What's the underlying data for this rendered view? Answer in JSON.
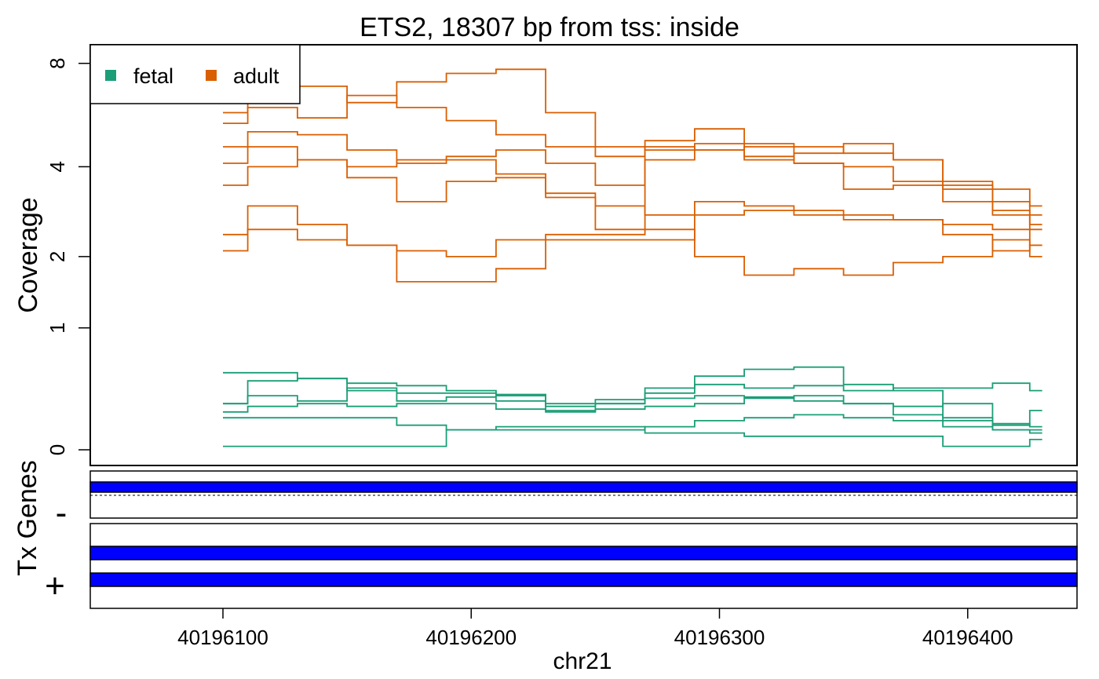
{
  "chart_data": {
    "type": "line",
    "title": "ETS2, 18307 bp from tss: inside",
    "xlabel": "chr21",
    "ylabel": "Coverage",
    "x_range": [
      40196046,
      40196446
    ],
    "x_ticks": [
      "40196100",
      "40196200",
      "40196300",
      "40196400"
    ],
    "y_scale": "log2(y+1)",
    "y_ticks": [
      "0",
      "1",
      "2",
      "4",
      "8"
    ],
    "y_range": [
      0,
      8.3
    ],
    "legend": {
      "placement": "top-left",
      "entries": [
        "fetal",
        "adult"
      ]
    },
    "colors": {
      "fetal": "#1b9e77",
      "adult": "#d95f02",
      "gene": "#0000ff"
    },
    "x": [
      40196100,
      40196120,
      40196140,
      40196160,
      40196180,
      40196200,
      40196220,
      40196240,
      40196260,
      40196280,
      40196300,
      40196320,
      40196340,
      40196360,
      40196380,
      40196400,
      40196420,
      40196430
    ],
    "series": [
      {
        "group": "adult",
        "values": [
          5.8,
          6.4,
          6.9,
          6.2,
          7.1,
          7.5,
          7.7,
          5.8,
          4.6,
          4.5,
          4.7,
          4.7,
          4.6,
          4.4,
          4.2,
          3.6,
          3.4,
          3.0
        ]
      },
      {
        "group": "adult",
        "values": [
          5.4,
          6.0,
          5.6,
          6.5,
          6.0,
          5.5,
          5.0,
          4.6,
          4.3,
          4.8,
          5.2,
          4.3,
          4.1,
          4.0,
          3.6,
          3.1,
          2.9,
          2.5
        ]
      },
      {
        "group": "adult",
        "values": [
          4.6,
          5.1,
          5.0,
          4.5,
          4.1,
          4.3,
          4.5,
          4.1,
          3.5,
          4.2,
          4.5,
          4.2,
          4.4,
          4.7,
          4.2,
          3.4,
          2.8,
          2.6
        ]
      },
      {
        "group": "adult",
        "values": [
          4.1,
          4.6,
          4.2,
          4.0,
          4.2,
          4.2,
          3.8,
          3.2,
          2.5,
          4.6,
          4.5,
          4.6,
          4.1,
          3.4,
          3.5,
          3.5,
          3.1,
          2.8
        ]
      },
      {
        "group": "adult",
        "values": [
          3.5,
          4.0,
          4.2,
          3.7,
          3.1,
          3.6,
          3.7,
          3.3,
          3.0,
          2.8,
          3.1,
          3.0,
          2.9,
          2.8,
          2.7,
          2.6,
          2.5,
          2.2
        ]
      },
      {
        "group": "adult",
        "values": [
          2.4,
          3.0,
          2.6,
          2.2,
          2.1,
          2.0,
          2.3,
          2.4,
          2.4,
          2.5,
          2.0,
          1.7,
          1.8,
          1.7,
          1.9,
          2.0,
          2.3,
          2.0
        ]
      },
      {
        "group": "adult",
        "values": [
          2.1,
          2.5,
          2.3,
          2.2,
          1.6,
          1.6,
          1.8,
          2.3,
          2.3,
          2.3,
          2.8,
          2.9,
          2.8,
          2.7,
          2.7,
          2.4,
          2.1,
          2.2
        ]
      },
      {
        "group": "fetal",
        "values": [
          0.55,
          0.55,
          0.5,
          0.4,
          0.38,
          0.38,
          0.37,
          0.28,
          0.33,
          0.38,
          0.52,
          0.58,
          0.6,
          0.45,
          0.4,
          0.18,
          0.12,
          0.12
        ]
      },
      {
        "group": "fetal",
        "values": [
          0.3,
          0.48,
          0.5,
          0.46,
          0.44,
          0.4,
          0.36,
          0.3,
          0.3,
          0.42,
          0.45,
          0.42,
          0.44,
          0.4,
          0.42,
          0.42,
          0.46,
          0.4
        ]
      },
      {
        "group": "fetal",
        "values": [
          0.3,
          0.36,
          0.32,
          0.42,
          0.32,
          0.35,
          0.32,
          0.25,
          0.3,
          0.34,
          0.36,
          0.35,
          0.32,
          0.3,
          0.22,
          0.2,
          0.15,
          0.25
        ]
      },
      {
        "group": "fetal",
        "values": [
          0.24,
          0.28,
          0.3,
          0.28,
          0.3,
          0.3,
          0.26,
          0.24,
          0.26,
          0.28,
          0.3,
          0.34,
          0.36,
          0.3,
          0.28,
          0.3,
          0.16,
          0.14
        ]
      },
      {
        "group": "fetal",
        "values": [
          0.2,
          0.2,
          0.2,
          0.2,
          0.15,
          0.12,
          0.12,
          0.12,
          0.12,
          0.14,
          0.18,
          0.2,
          0.22,
          0.2,
          0.18,
          0.14,
          0.12,
          0.1
        ]
      },
      {
        "group": "fetal",
        "values": [
          0.02,
          0.02,
          0.02,
          0.02,
          0.02,
          0.12,
          0.14,
          0.14,
          0.14,
          0.1,
          0.1,
          0.08,
          0.08,
          0.08,
          0.08,
          0.02,
          0.02,
          0.06
        ]
      }
    ],
    "gene_panels": [
      {
        "strand": "-",
        "bars": 1,
        "dashed_line": true
      },
      {
        "strand": "+",
        "bars": 2,
        "dashed_line": false
      }
    ],
    "gene_track_label": "Tx Genes"
  }
}
